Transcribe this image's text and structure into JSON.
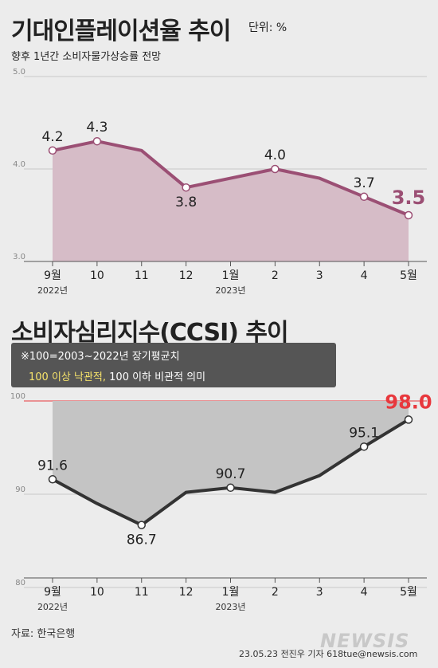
{
  "title1": "기대인플레이션율 추이",
  "unit1": "단위: %",
  "subtitle1": "향후 1년간 소비자물가상승률 전망",
  "title2": "소비자심리지수(CCSI) 추이",
  "note_line1": "※100=2003~2022년 장기평균치",
  "note_hl": "100 이상 낙관적,",
  "note_rest": " 100 이하 비관적 의미",
  "source": "자료: 한국은행",
  "credit": "23.05.23 전진우 기자 618tue@newsis.com",
  "logo": "NEWSIS",
  "colors": {
    "inflation": "#9b4f74",
    "inflation_fill": "#d6bcc7",
    "ccsi": "#333333",
    "highlight_red": "#e8383d"
  },
  "chart_data": [
    {
      "type": "area",
      "x": [
        "9월",
        "10",
        "11",
        "12",
        "1월",
        "2",
        "3",
        "4",
        "5월"
      ],
      "x_sublabels": [
        "2022년",
        "",
        "",
        "",
        "2023년",
        "",
        "",
        "",
        ""
      ],
      "values": [
        4.2,
        4.3,
        4.2,
        3.8,
        3.9,
        4.0,
        3.9,
        3.7,
        3.5
      ],
      "labels": [
        "4.2",
        "4.3",
        "",
        "3.8",
        "",
        "4.0",
        "",
        "3.7",
        "3.5"
      ],
      "ylim": [
        3.0,
        5.0
      ],
      "yticks": [
        "3.0",
        "4.0",
        "5.0"
      ]
    },
    {
      "type": "area",
      "x": [
        "9월",
        "10",
        "11",
        "12",
        "1월",
        "2",
        "3",
        "4",
        "5월"
      ],
      "x_sublabels": [
        "2022년",
        "",
        "",
        "",
        "2023년",
        "",
        "",
        "",
        ""
      ],
      "values": [
        91.6,
        89.0,
        86.7,
        90.2,
        90.7,
        90.2,
        92.0,
        95.1,
        98.0
      ],
      "labels": [
        "91.6",
        "",
        "86.7",
        "",
        "90.7",
        "",
        "",
        "95.1",
        "98.0"
      ],
      "ylim": [
        80,
        100
      ],
      "yticks": [
        "80",
        "90",
        "100"
      ],
      "reference_line": 100
    }
  ]
}
